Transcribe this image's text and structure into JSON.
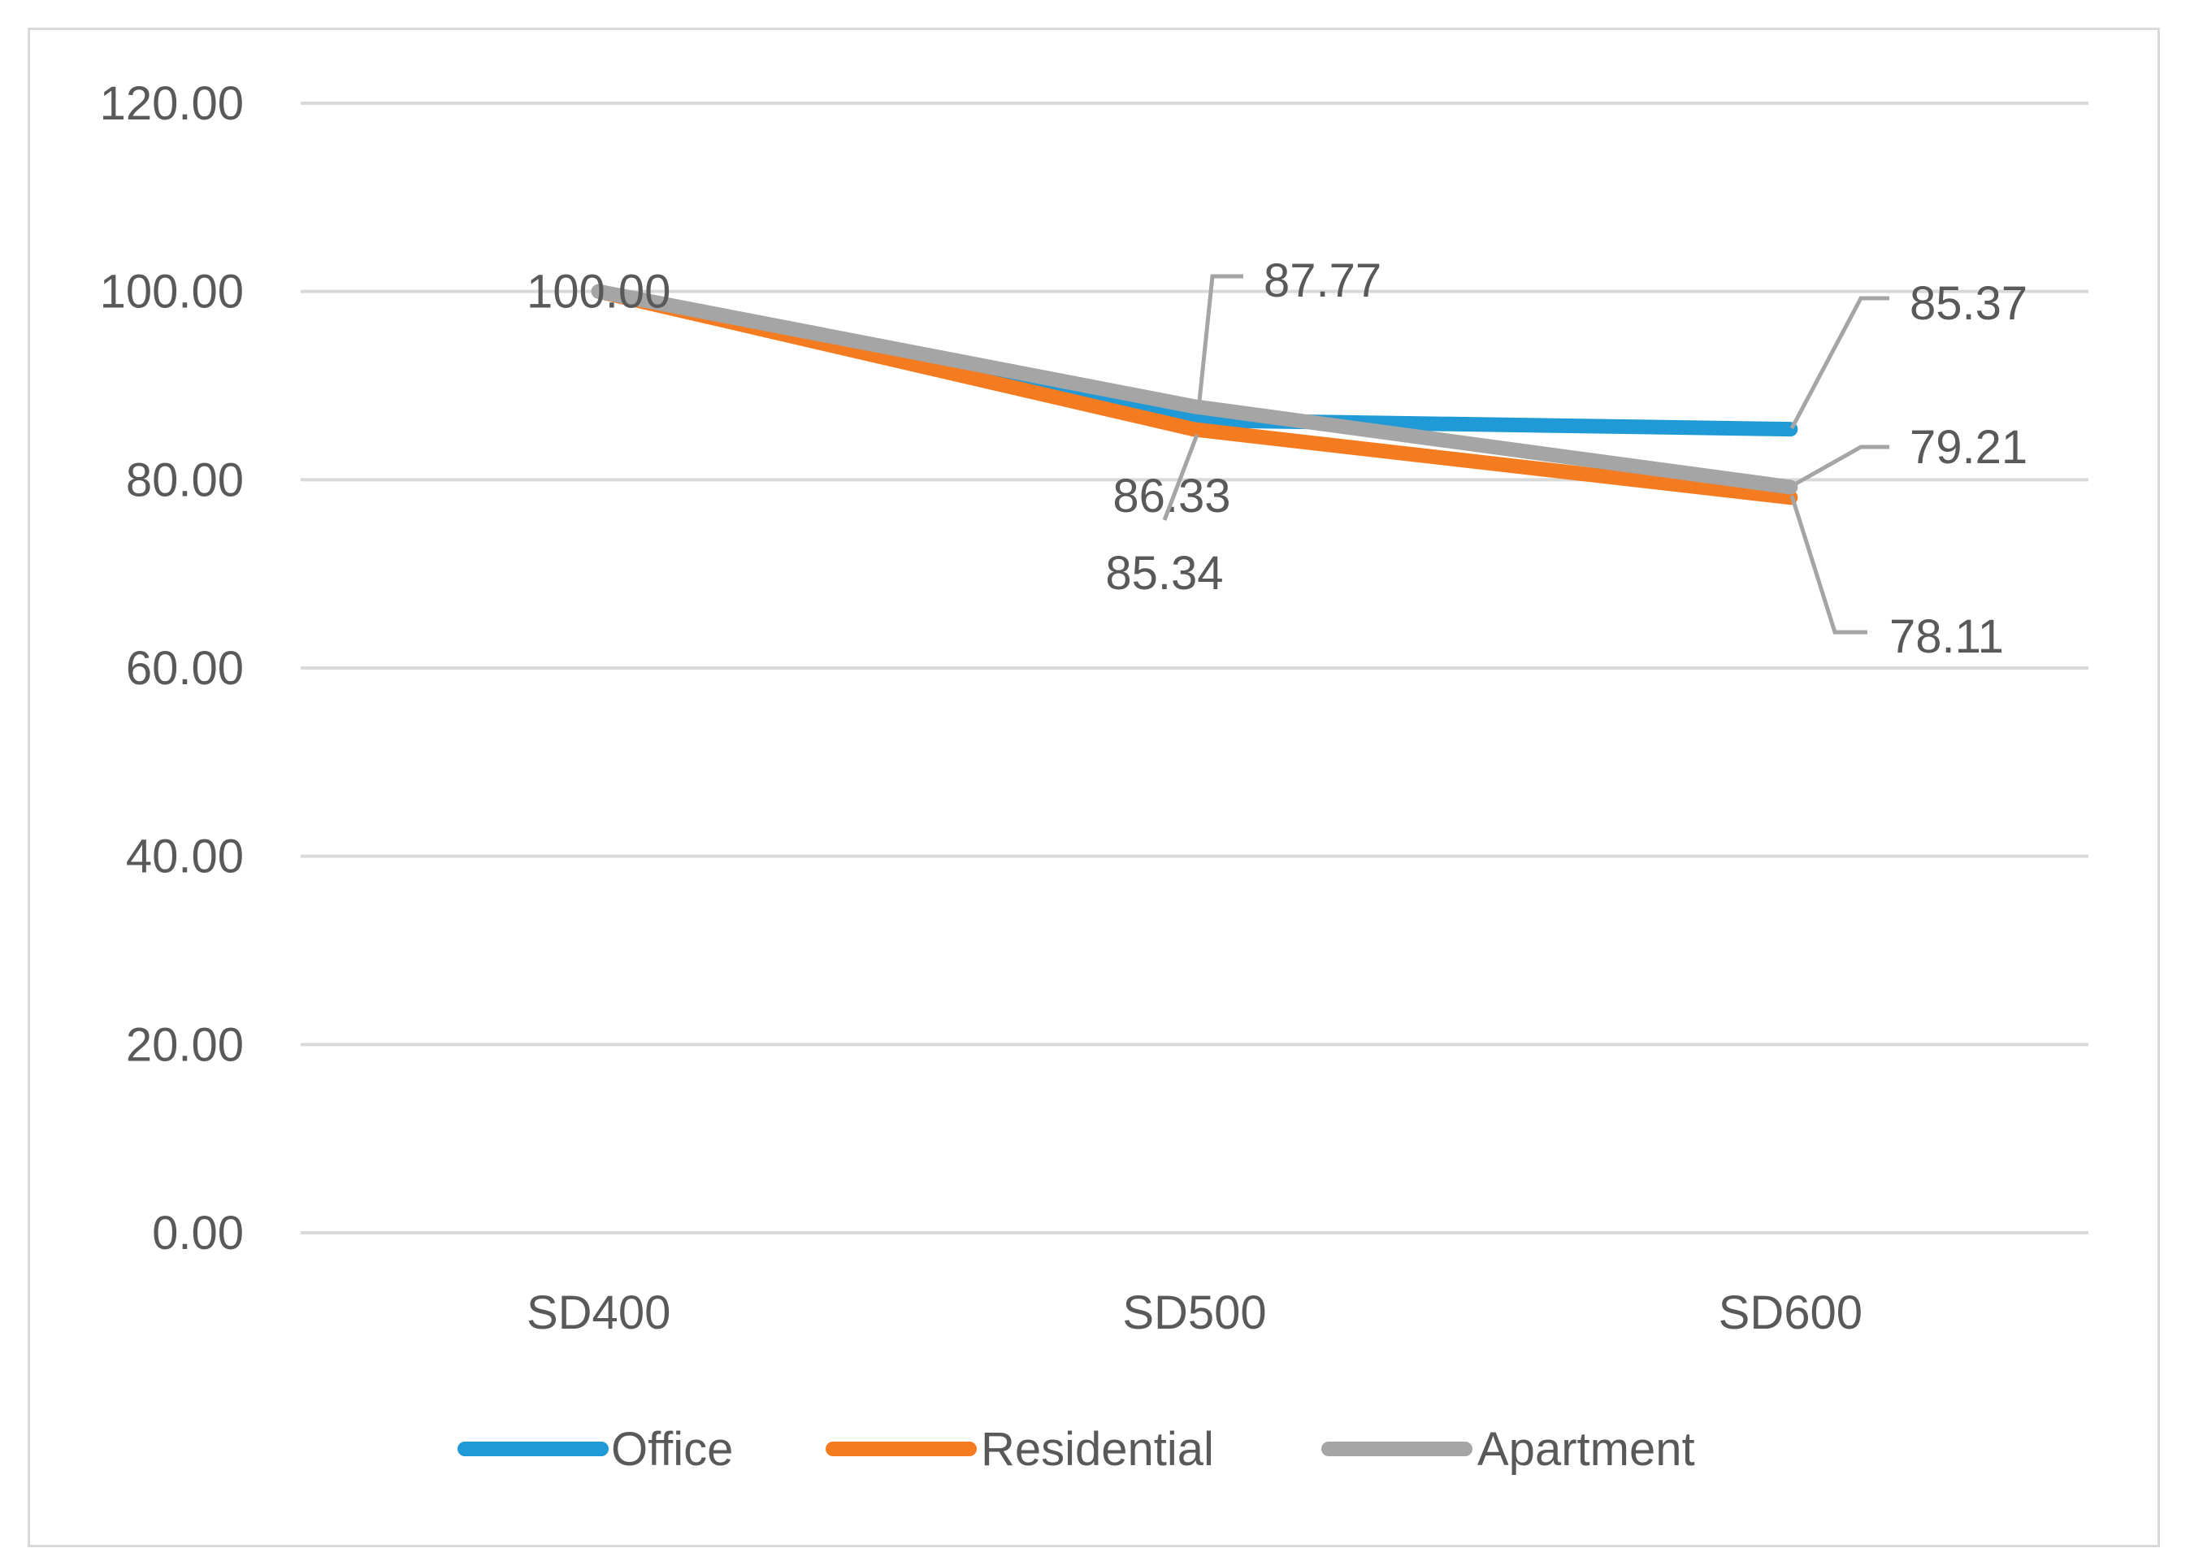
{
  "chart_data": {
    "type": "line",
    "title": "",
    "xlabel": "",
    "ylabel": "",
    "categories": [
      "SD400",
      "SD500",
      "SD600"
    ],
    "ylim": [
      0,
      120
    ],
    "yticks": [
      0,
      20,
      40,
      60,
      80,
      100,
      120
    ],
    "ytick_labels": [
      "0.00",
      "20.00",
      "40.00",
      "60.00",
      "80.00",
      "100.00",
      "120.00"
    ],
    "grid": true,
    "legend_position": "bottom",
    "series": [
      {
        "name": "Office",
        "color": "#1f9ad6",
        "values": [
          100.0,
          86.33,
          85.37
        ],
        "labels": [
          "",
          "86.33",
          "85.37"
        ]
      },
      {
        "name": "Residential",
        "color": "#f47b20",
        "values": [
          100.0,
          85.34,
          78.11
        ],
        "labels": [
          "",
          "85.34",
          "78.11"
        ]
      },
      {
        "name": "Apartment",
        "color": "#a5a5a5",
        "values": [
          100.0,
          87.77,
          79.21
        ],
        "labels": [
          "100.00",
          "87.77",
          "79.21"
        ]
      }
    ]
  }
}
